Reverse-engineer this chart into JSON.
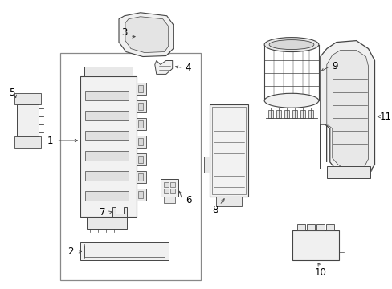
{
  "bg_color": "#ffffff",
  "line_color": "#444444",
  "label_fontsize": 8.5,
  "fig_width": 4.89,
  "fig_height": 3.6,
  "dpi": 100
}
